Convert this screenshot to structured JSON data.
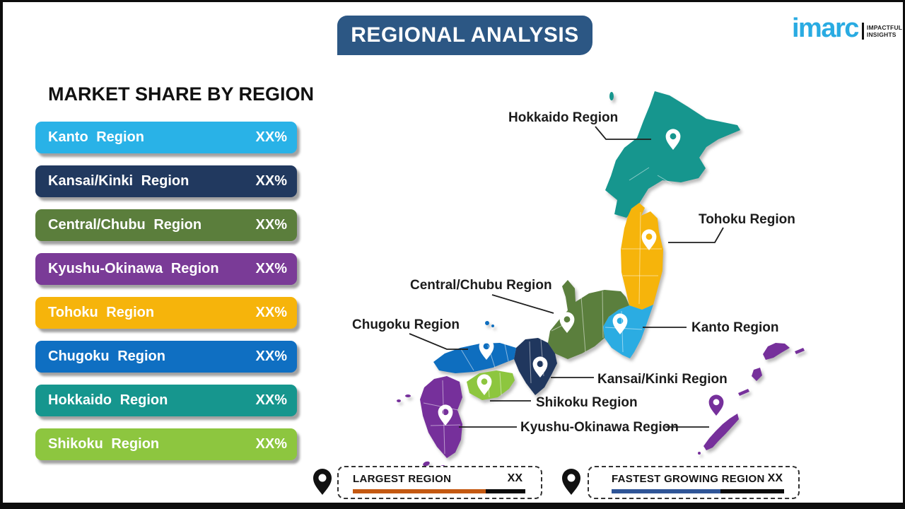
{
  "header": {
    "title": "REGIONAL ANALYSIS",
    "bg_color": "#2C5784"
  },
  "logo": {
    "brand": "imarc",
    "brand_color": "#29ABE2",
    "tagline_line1": "IMPACTFUL",
    "tagline_line2": "INSIGHTS"
  },
  "market_share": {
    "heading": "MARKET SHARE BY REGION",
    "items": [
      {
        "label": "Kanto Region",
        "value": "XX%",
        "color": "#29B2E7"
      },
      {
        "label": "Kansai/Kinki Region",
        "value": "XX%",
        "color": "#21395F"
      },
      {
        "label": "Central/Chubu Region",
        "value": "XX%",
        "color": "#5B7E3C"
      },
      {
        "label": "Kyushu-Okinawa Region",
        "value": "XX%",
        "color": "#7A3B97"
      },
      {
        "label": "Tohoku Region",
        "value": "XX%",
        "color": "#F6B40B"
      },
      {
        "label": "Chugoku Region",
        "value": "XX%",
        "color": "#0F6FC2"
      },
      {
        "label": "Hokkaido Region",
        "value": "XX%",
        "color": "#16968E"
      },
      {
        "label": "Shikoku Region",
        "value": "XX%",
        "color": "#8DC63F"
      }
    ]
  },
  "map": {
    "regions": [
      {
        "id": "hokkaido",
        "name": "Hokkaido",
        "color": "#16968E"
      },
      {
        "id": "tohoku",
        "name": "Tohoku",
        "color": "#F6B40B"
      },
      {
        "id": "kanto",
        "name": "Kanto",
        "color": "#2BACE2"
      },
      {
        "id": "chubu",
        "name": "Central/Chubu",
        "color": "#5B7F3D"
      },
      {
        "id": "kansai",
        "name": "Kansai/Kinki",
        "color": "#20375E"
      },
      {
        "id": "chugoku",
        "name": "Chugoku",
        "color": "#0E6EBF"
      },
      {
        "id": "shikoku",
        "name": "Shikoku",
        "color": "#8DC63F"
      },
      {
        "id": "kyushu",
        "name": "Kyushu-Okinawa",
        "color": "#76309B"
      },
      {
        "id": "okinawa",
        "name": "Okinawa islands",
        "color": "#76309B"
      }
    ],
    "callouts": [
      {
        "label": "Hokkaido Region"
      },
      {
        "label": "Tohoku Region"
      },
      {
        "label": "Central/Chubu Region"
      },
      {
        "label": "Chugoku Region"
      },
      {
        "label": "Kanto Region"
      },
      {
        "label": "Kansai/Kinki Region"
      },
      {
        "label": "Shikoku Region"
      },
      {
        "label": "Kyushu-Okinawa Region"
      }
    ]
  },
  "legend": {
    "largest": {
      "label": "LARGEST REGION",
      "value": "XX",
      "bar_color": "#C45911",
      "bar_fill_pct": 77
    },
    "fastest": {
      "label": "FASTEST GROWING REGION",
      "value": "XX",
      "bar_color": "#2F5597",
      "bar_fill_pct": 63
    }
  }
}
